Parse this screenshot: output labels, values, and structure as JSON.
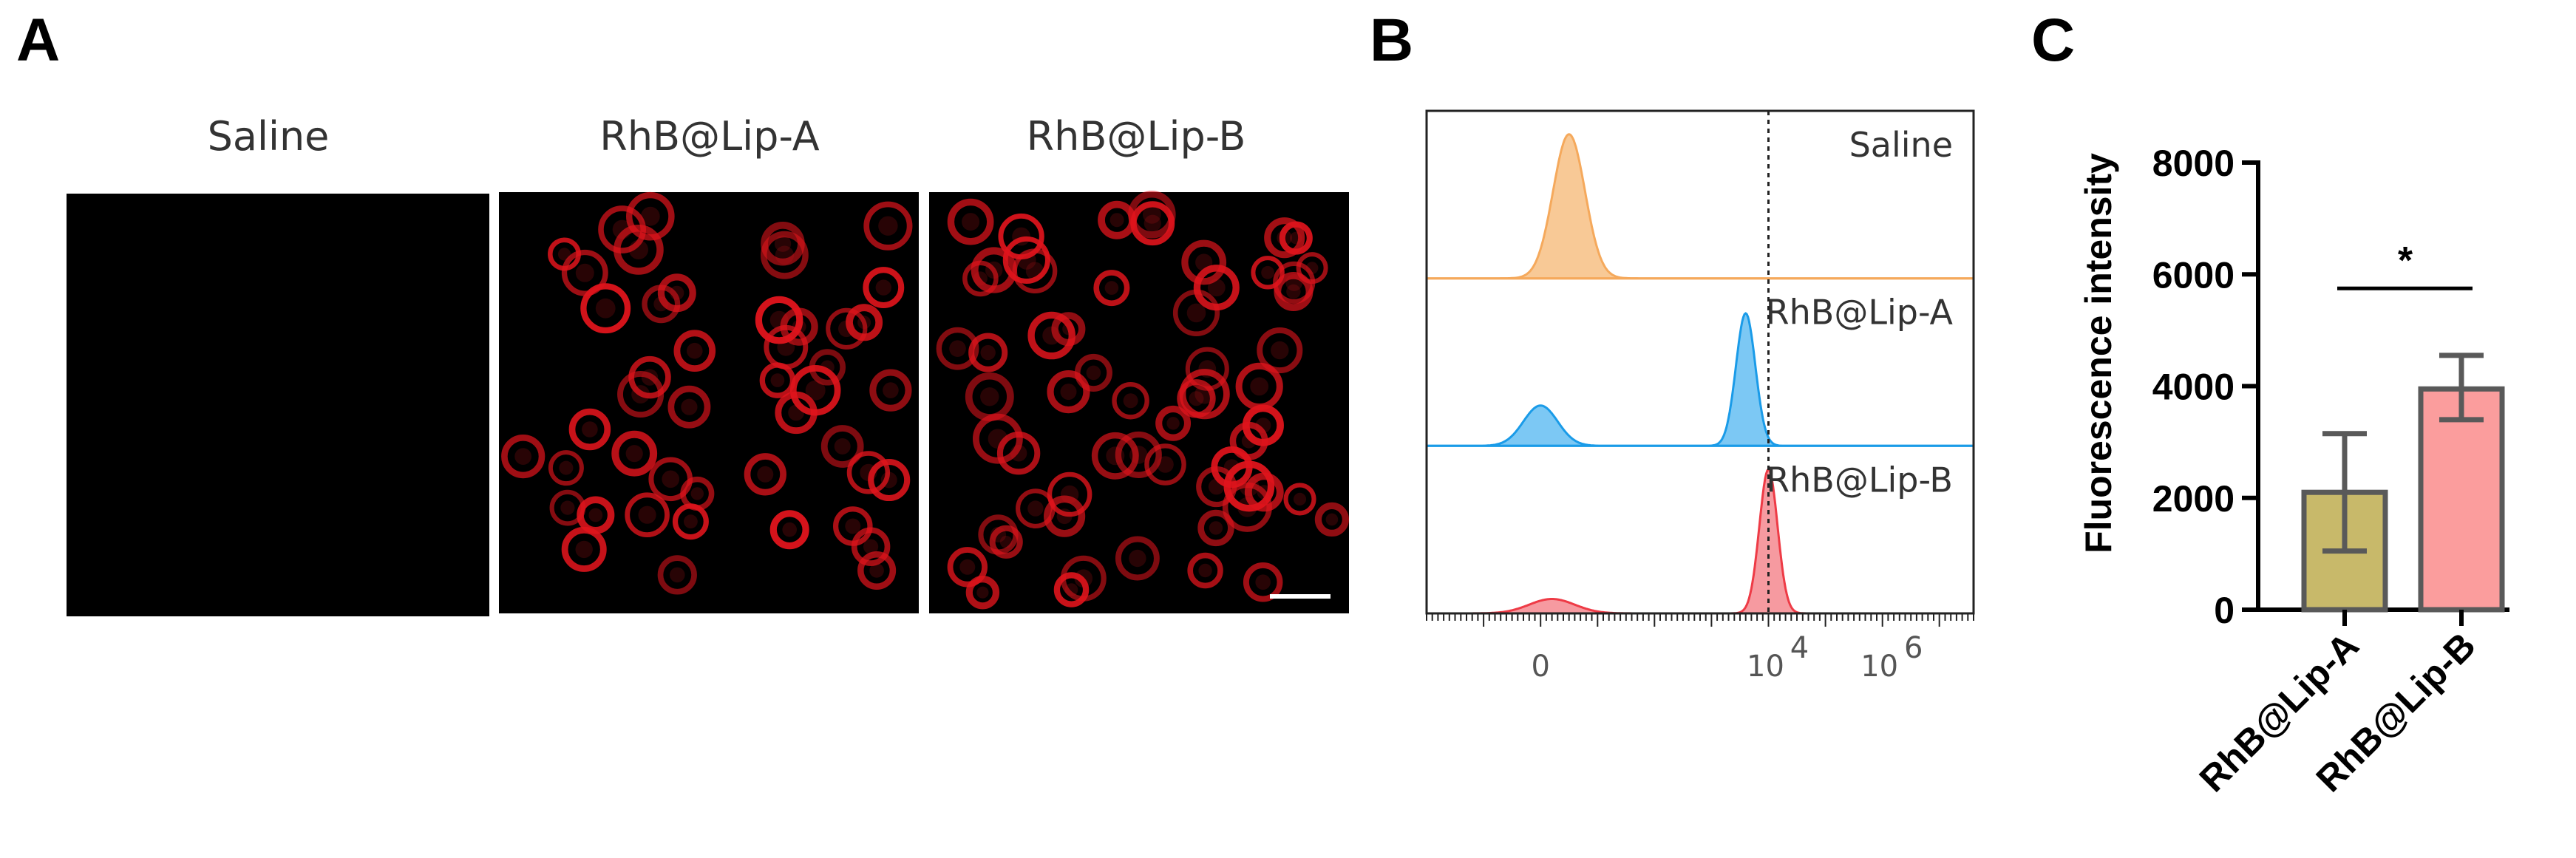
{
  "panels": {
    "a": {
      "letter": "A",
      "labels": [
        "Saline",
        "RhB@Lip-A",
        "RhB@Lip-B"
      ],
      "image_color": "#e0141c"
    },
    "b": {
      "letter": "B"
    },
    "c": {
      "letter": "C"
    }
  },
  "chart_data": [
    {
      "type": "area",
      "panel": "B",
      "series": [
        {
          "name": "Saline",
          "color": "#f5a95c",
          "fill": "#f8c996",
          "peaks": [
            {
              "center": 0.5,
              "height": 1.0,
              "width": 0.28
            }
          ]
        },
        {
          "name": "RhB@Lip-A",
          "color": "#1a9be8",
          "fill": "#7cc8f4",
          "peaks": [
            {
              "center": 0.0,
              "height": 0.28,
              "width": 0.3
            },
            {
              "center": 3.6,
              "height": 0.92,
              "width": 0.17
            }
          ]
        },
        {
          "name": "RhB@Lip-B",
          "color": "#ee3b46",
          "fill": "#f69aa0",
          "peaks": [
            {
              "center": 0.2,
              "height": 0.1,
              "width": 0.4
            },
            {
              "center": 4.0,
              "height": 1.0,
              "width": 0.16
            }
          ]
        }
      ],
      "x_ticks": [
        {
          "value": 0,
          "base": "0",
          "exp": ""
        },
        {
          "value": 4,
          "base": "10",
          "exp": "4"
        },
        {
          "value": 6,
          "base": "10",
          "exp": "6"
        }
      ],
      "xlim": [
        -2,
        7.6
      ],
      "threshold": 4,
      "grid": false
    },
    {
      "type": "bar",
      "panel": "C",
      "categories": [
        "RhB@Lip-A",
        "RhB@Lip-B"
      ],
      "values": [
        2100,
        3950
      ],
      "error_low": [
        1050,
        3400
      ],
      "error_high": [
        3150,
        4550
      ],
      "colors": [
        "#c8b96a",
        "#fb9d9d"
      ],
      "edge_color": "#595959",
      "ylabel": "Fluorescence intensity",
      "ylim": [
        0,
        8000
      ],
      "yticks": [
        "0",
        "2000",
        "4000",
        "6000",
        "8000"
      ],
      "significance": "*",
      "grid": false
    }
  ]
}
